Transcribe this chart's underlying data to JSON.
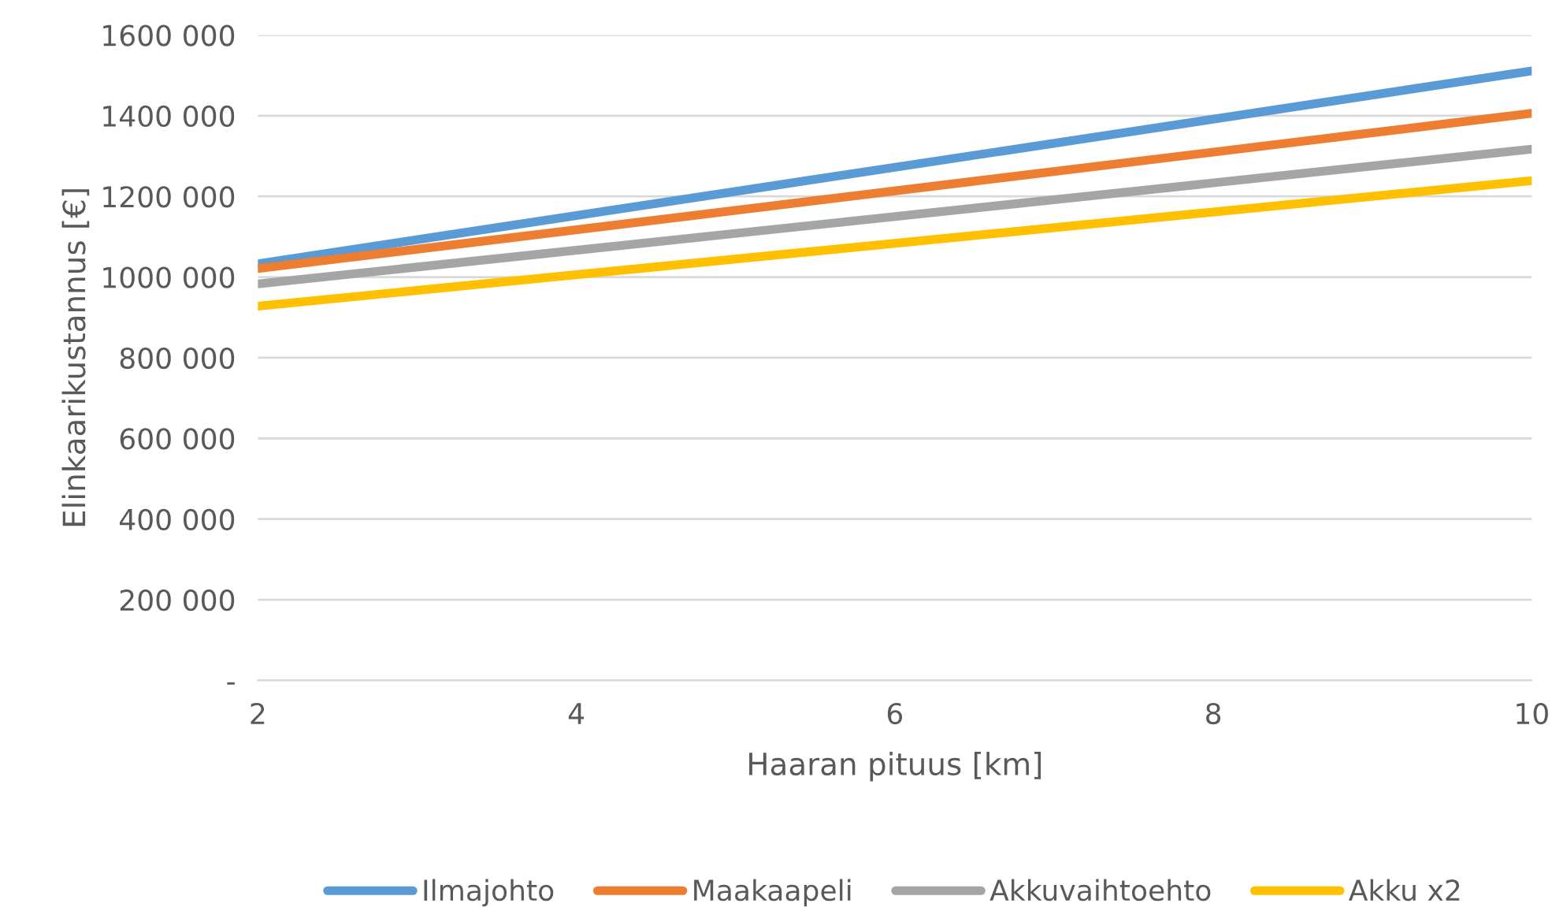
{
  "chart_data": {
    "type": "line",
    "xlabel": "Haaran pituus [km]",
    "ylabel": "Elinkaarikustannus [€]",
    "x": [
      2,
      10
    ],
    "series": [
      {
        "name": "Ilmajohto",
        "color": "#5b9bd5",
        "values": [
          1033000,
          1511000
        ]
      },
      {
        "name": "Maakaapeli",
        "color": "#ed7d31",
        "values": [
          1021000,
          1406000
        ]
      },
      {
        "name": "Akkuvaihtoehto",
        "color": "#a5a5a5",
        "values": [
          983000,
          1317000
        ]
      },
      {
        "name": "Akku x2",
        "color": "#ffc000",
        "values": [
          928000,
          1239000
        ]
      }
    ],
    "xlim": [
      2,
      10
    ],
    "xticks": [
      2,
      4,
      6,
      8,
      10
    ],
    "ylim": [
      0,
      1600000
    ],
    "yticks": [
      {
        "value": 0,
        "label": "-"
      },
      {
        "value": 200000,
        "label": "200 000"
      },
      {
        "value": 400000,
        "label": "400 000"
      },
      {
        "value": 600000,
        "label": "600 000"
      },
      {
        "value": 800000,
        "label": "800 000"
      },
      {
        "value": 1000000,
        "label": "1000 000"
      },
      {
        "value": 1200000,
        "label": "1200 000"
      },
      {
        "value": 1400000,
        "label": "1400 000"
      },
      {
        "value": 1600000,
        "label": "1600 000"
      }
    ],
    "grid": "y",
    "legend": "bottom",
    "marker": "none",
    "line_style": "solid"
  }
}
